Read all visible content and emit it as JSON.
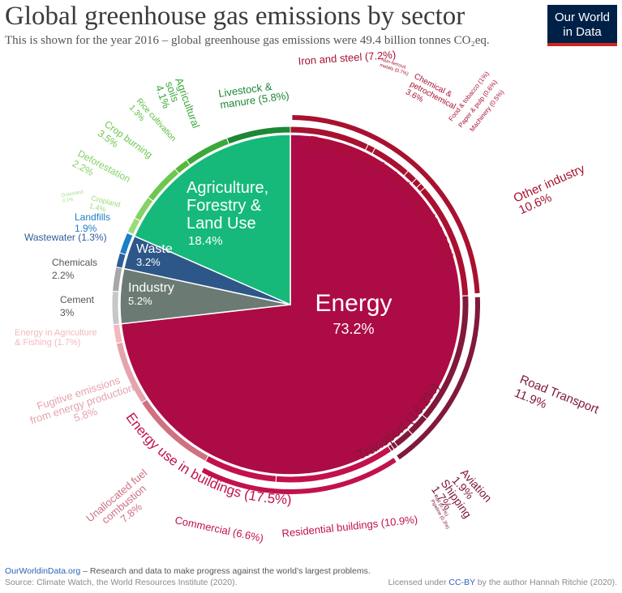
{
  "header": {
    "title": "Global greenhouse gas emissions by sector",
    "subtitle": "This is shown for the year 2016 – global greenhouse gas emissions were 49.4 billion tonnes CO₂eq.",
    "logo_line1": "Our World",
    "logo_line2": "in Data"
  },
  "footer": {
    "site": "OurWorldinData.org",
    "tagline": " – Research and data to make progress against the world’s largest problems.",
    "source": "Source: Climate Watch, the World Resources Institute (2020).",
    "license_pre": "Licensed under ",
    "license_link": "CC-BY",
    "license_post": " by the author Hannah Ritchie (2020)."
  },
  "chart_data": {
    "type": "pie",
    "title": "Global greenhouse gas emissions by sector",
    "unit": "%",
    "sectors": [
      {
        "name": "Energy",
        "value": 73.2,
        "color": "#ad0b46"
      },
      {
        "name": "Industry",
        "value": 5.2,
        "color": "#6b7b73"
      },
      {
        "name": "Waste",
        "value": 3.2,
        "color": "#2d5788"
      },
      {
        "name": "Agriculture, Forestry & Land Use",
        "value": 18.4,
        "color": "#16b97a"
      }
    ],
    "energy_groups": [
      {
        "label": "Energy use in Industry (24.2%)",
        "value": 24.2,
        "color": "#a8112f"
      },
      {
        "label": "Transport (16.2%)",
        "value": 16.2,
        "color": "#80193a"
      },
      {
        "label": "Energy use in buildings (17.5%)",
        "value": 17.5,
        "color": "#c2114c"
      }
    ],
    "subsectors": [
      {
        "label": "Iron and steel (7.2%)",
        "value": 7.2,
        "color": "#a8112f"
      },
      {
        "label": "Non-ferrous metals (0.7%)",
        "value": 0.7,
        "color": "#a8112f"
      },
      {
        "label": "Chemical & petrochemical 3.6%",
        "value": 3.6,
        "color": "#a8112f"
      },
      {
        "label": "Food & tobacco (1%)",
        "value": 1.0,
        "color": "#a8112f"
      },
      {
        "label": "Paper & pulp (0.6%)",
        "value": 0.6,
        "color": "#a8112f"
      },
      {
        "label": "Machinery (0.5%)",
        "value": 0.5,
        "color": "#a8112f"
      },
      {
        "label": "Other industry 10.6%",
        "value": 10.6,
        "color": "#a8112f"
      },
      {
        "label": "Road Transport 11.9%",
        "value": 11.9,
        "color": "#80193a"
      },
      {
        "label": "Aviation 1.9%",
        "value": 1.9,
        "color": "#80193a"
      },
      {
        "label": "Shipping 1.7%",
        "value": 1.7,
        "color": "#80193a"
      },
      {
        "label": "Rail (0.4%)",
        "value": 0.4,
        "color": "#80193a"
      },
      {
        "label": "Pipeline (0.3%)",
        "value": 0.3,
        "color": "#80193a"
      },
      {
        "label": "Residential buildings (10.9%)",
        "value": 10.9,
        "color": "#c2114c"
      },
      {
        "label": "Commercial (6.6%)",
        "value": 6.6,
        "color": "#c2114c"
      },
      {
        "label": "Unallocated fuel combustion 7.8%",
        "value": 7.8,
        "color": "#cf7180"
      },
      {
        "label": "Fugitive emissions from energy production 5.8%",
        "value": 5.8,
        "color": "#e4a3ad"
      },
      {
        "label": "Energy in Agriculture & Fishing (1.7%)",
        "value": 1.7,
        "color": "#f2b8be"
      },
      {
        "label": "Cement 3%",
        "value": 3.0,
        "color": "#c7c7c7"
      },
      {
        "label": "Chemicals 2.2%",
        "value": 2.2,
        "color": "#a7a7a7"
      },
      {
        "label": "Wastewater (1.3%)",
        "value": 1.3,
        "color": "#2f5d9a"
      },
      {
        "label": "Landfills 1.9%",
        "value": 1.9,
        "color": "#1b7fc7"
      },
      {
        "label": "Grassland 0.1%",
        "value": 0.1,
        "color": "#9fde8d"
      },
      {
        "label": "Cropland 1.4%",
        "value": 1.4,
        "color": "#9bdb7c"
      },
      {
        "label": "Deforestation 2.2%",
        "value": 2.2,
        "color": "#84d266"
      },
      {
        "label": "Crop burning 3.5%",
        "value": 3.5,
        "color": "#6cc74e"
      },
      {
        "label": "Rice cultivation 1.3%",
        "value": 1.3,
        "color": "#56b93a"
      },
      {
        "label": "Agricultural soils 4.1%",
        "value": 4.1,
        "color": "#3aa83a"
      },
      {
        "label": "Livestock & manure (5.8%)",
        "value": 5.8,
        "color": "#1c8734"
      }
    ]
  }
}
